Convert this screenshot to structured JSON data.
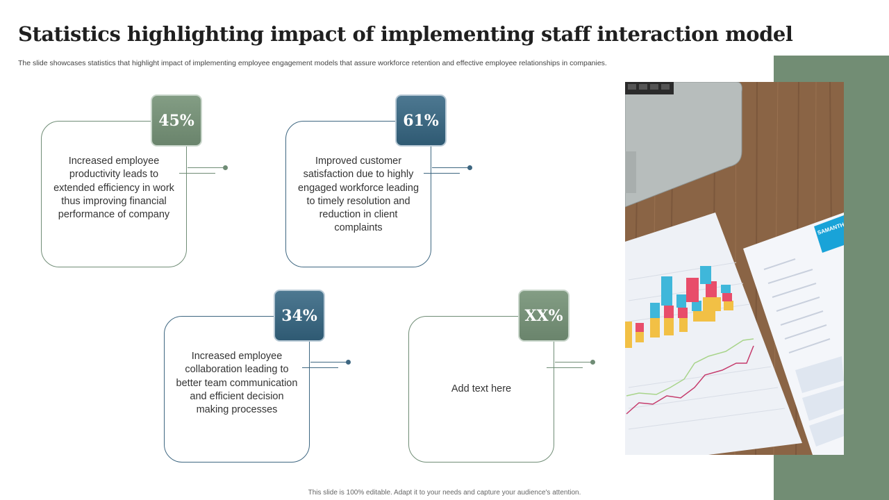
{
  "slide": {
    "title": "Statistics highlighting impact of implementing staff interaction model",
    "subtitle": "The slide showcases statistics that highlight impact of implementing employee engagement models that assure workforce retention and effective employee relationships in companies.",
    "footer": "This slide is 100% editable. Adapt it to your needs and capture your audience's attention."
  },
  "stats": [
    {
      "value": "45%",
      "text": "Increased employee productivity leads to extended efficiency in work thus improving financial performance of company",
      "color": "green"
    },
    {
      "value": "61%",
      "text": "Improved customer satisfaction due to highly engaged workforce leading to timely resolution and reduction in client complaints",
      "color": "blue"
    },
    {
      "value": "34%",
      "text": "Increased employee collaboration leading to better team communication and efficient decision making processes",
      "color": "blue"
    },
    {
      "value": "XX%",
      "text": "Add text here",
      "color": "green"
    }
  ],
  "colors": {
    "accent_green": "#728d74",
    "accent_blue": "#3d6680"
  },
  "image": {
    "resume_name": "SAMANTHA BLACK"
  }
}
